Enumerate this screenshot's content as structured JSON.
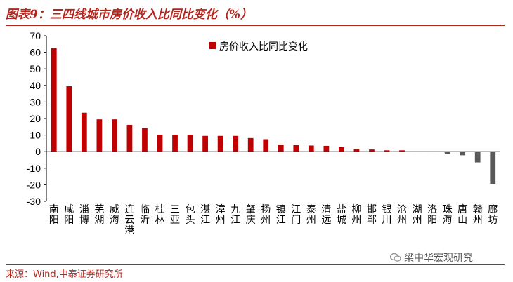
{
  "header": {
    "title": "图表9：三四线城市房价收入比同比变化（%）"
  },
  "footer": {
    "source": "来源：Wind,中泰证券研究所",
    "watermark": "梁中华宏观研究",
    "watermark_icon": "wechat-icon"
  },
  "colors": {
    "accent": "#b3261e",
    "positive_bar": "#c00000",
    "negative_bar": "#595959"
  },
  "chart_data": {
    "type": "bar",
    "title": "",
    "xlabel": "",
    "ylabel": "",
    "ylim": [
      -30,
      70
    ],
    "yticks": [
      -30,
      -20,
      -10,
      0,
      10,
      20,
      30,
      40,
      50,
      60,
      70
    ],
    "grid": false,
    "legend_position": "top-center",
    "categories": [
      "南阳",
      "咸阳",
      "淄博",
      "芜湖",
      "威海",
      "连云港",
      "临沂",
      "桂林",
      "三亚",
      "包头",
      "湛江",
      "漳州",
      "九江",
      "肇庆",
      "扬州",
      "镇江",
      "江门",
      "泰州",
      "清远",
      "盐城",
      "柳州",
      "邯郸",
      "银川",
      "沧州",
      "湖州",
      "洛阳",
      "珠海",
      "唐山",
      "赣州",
      "廊坊"
    ],
    "series": [
      {
        "name": "房价收入比同比变化",
        "values": [
          62.5,
          39.5,
          23.5,
          19.5,
          19.5,
          16.2,
          14.2,
          10.2,
          10.2,
          10.2,
          9.5,
          9.5,
          9.5,
          8.2,
          7.5,
          4.2,
          4.0,
          3.7,
          3.5,
          2.7,
          1.5,
          1.3,
          0.8,
          0.8,
          -0.3,
          -0.3,
          -1.5,
          -2.2,
          -6.5,
          -19.5
        ]
      }
    ]
  }
}
